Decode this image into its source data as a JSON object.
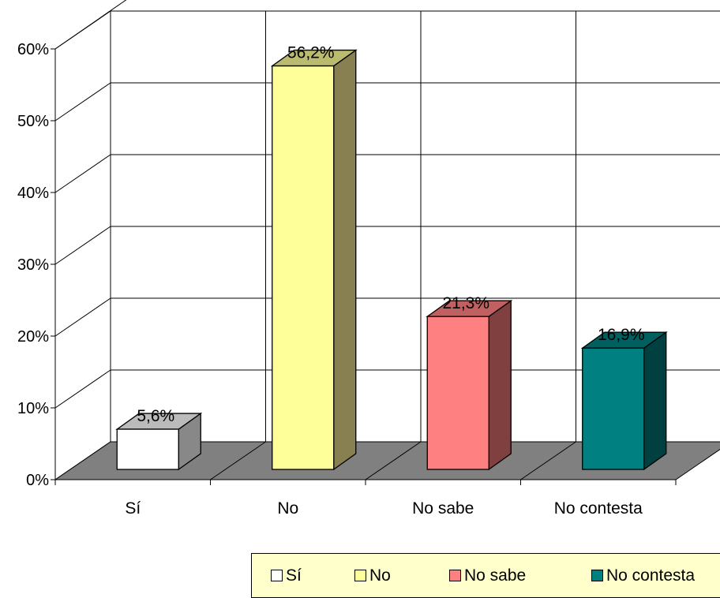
{
  "chart_data": {
    "type": "bar",
    "title": "",
    "xlabel": "",
    "ylabel": "",
    "categories": [
      "Sí",
      "No",
      "No sabe",
      "No contesta"
    ],
    "values": [
      5.6,
      56.2,
      21.3,
      16.9
    ],
    "value_labels": [
      "5,6%",
      "56,2%",
      "21,3%",
      "16,9%"
    ],
    "ylim": [
      0,
      60
    ],
    "yticks": [
      0,
      10,
      20,
      30,
      40,
      50,
      60
    ],
    "ytick_labels": [
      "0%",
      "10%",
      "20%",
      "30%",
      "40%",
      "50%",
      "60%"
    ],
    "grid": true,
    "three_d": true,
    "legend_position": "bottom-right",
    "legend": [
      "Sí",
      "No",
      "No sabe",
      "No contesta"
    ],
    "colors": [
      "#ffffff",
      "#ffff99",
      "#ff8080",
      "#008080"
    ],
    "side_colors": [
      "#888888",
      "#888050",
      "#804040",
      "#004040"
    ],
    "top_colors": [
      "#bbbbbb",
      "#bbbb70",
      "#c06060",
      "#006060"
    ],
    "floor_color": "#808080"
  }
}
